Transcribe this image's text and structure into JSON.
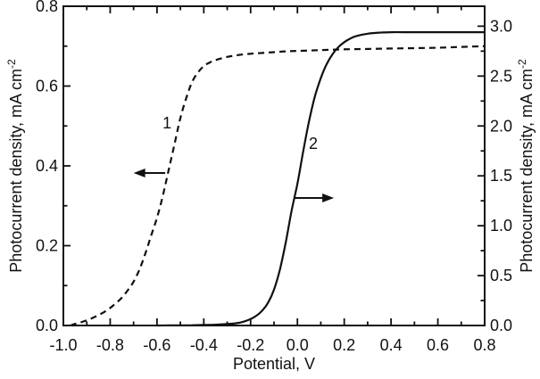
{
  "figure": {
    "background": "#ffffff",
    "ink_color": "#111111"
  },
  "chart_data": {
    "type": "line",
    "title": "",
    "xlabel": "Potential, V",
    "ylabel_left": {
      "text": "Photocurrent density, mA cm",
      "sup": "-2"
    },
    "ylabel_right": {
      "text": "Photocurrent density, mA cm",
      "sup": "-2"
    },
    "x_range": [
      -1.0,
      0.8
    ],
    "y_left_range": [
      0.0,
      0.8
    ],
    "y_right_range": [
      0.0,
      3.2
    ],
    "grid": false,
    "legend": "none",
    "x_major_ticks": [
      -1.0,
      -0.8,
      -0.6,
      -0.4,
      -0.2,
      0.0,
      0.2,
      0.4,
      0.6,
      0.8
    ],
    "x_tick_labels": [
      "-1.0",
      "-0.8",
      "-0.6",
      "-0.4",
      "-0.2",
      "0.0",
      "0.2",
      "0.4",
      "0.6",
      "0.8"
    ],
    "x_minor_ticks": [
      -0.9,
      -0.7,
      -0.5,
      -0.3,
      -0.1,
      0.1,
      0.3,
      0.5,
      0.7
    ],
    "y_left_major_ticks": [
      0.0,
      0.2,
      0.4,
      0.6,
      0.8
    ],
    "y_left_tick_labels": [
      "0.0",
      "0.2",
      "0.4",
      "0.6",
      "0.8"
    ],
    "y_left_minor_ticks": [
      0.1,
      0.3,
      0.5,
      0.7
    ],
    "y_right_major_ticks": [
      0.0,
      0.5,
      1.0,
      1.5,
      2.0,
      2.5,
      3.0
    ],
    "y_right_tick_labels": [
      "0.0",
      "0.5",
      "1.0",
      "1.5",
      "2.0",
      "2.5",
      "3.0"
    ],
    "y_right_minor_ticks": [
      0.25,
      0.75,
      1.25,
      1.75,
      2.25,
      2.75
    ],
    "series": [
      {
        "name": "1",
        "axis": "left",
        "line_style": "dashed",
        "x": [
          -0.97,
          -0.95,
          -0.925,
          -0.9,
          -0.875,
          -0.85,
          -0.825,
          -0.8,
          -0.775,
          -0.75,
          -0.725,
          -0.7,
          -0.675,
          -0.65,
          -0.625,
          -0.6,
          -0.575,
          -0.55,
          -0.525,
          -0.5,
          -0.475,
          -0.45,
          -0.425,
          -0.4,
          -0.375,
          -0.35,
          -0.3,
          -0.25,
          -0.2,
          -0.15,
          -0.1,
          -0.05,
          0.0,
          0.1,
          0.2,
          0.3,
          0.4,
          0.5,
          0.6,
          0.7,
          0.8
        ],
        "y": [
          0.0,
          0.004,
          0.008,
          0.013,
          0.019,
          0.026,
          0.034,
          0.044,
          0.056,
          0.07,
          0.088,
          0.11,
          0.14,
          0.18,
          0.225,
          0.27,
          0.325,
          0.39,
          0.455,
          0.52,
          0.57,
          0.61,
          0.634,
          0.65,
          0.659,
          0.665,
          0.673,
          0.678,
          0.681,
          0.683,
          0.685,
          0.687,
          0.688,
          0.69,
          0.692,
          0.693,
          0.694,
          0.695,
          0.696,
          0.698,
          0.7
        ]
      },
      {
        "name": "2",
        "axis": "right",
        "line_style": "solid",
        "x": [
          -0.6,
          -0.55,
          -0.5,
          -0.45,
          -0.4,
          -0.35,
          -0.3,
          -0.275,
          -0.25,
          -0.225,
          -0.2,
          -0.175,
          -0.15,
          -0.125,
          -0.1,
          -0.075,
          -0.05,
          -0.025,
          0.0,
          0.025,
          0.05,
          0.075,
          0.1,
          0.125,
          0.15,
          0.175,
          0.2,
          0.225,
          0.25,
          0.3,
          0.35,
          0.4,
          0.45,
          0.5,
          0.55,
          0.6,
          0.65,
          0.7,
          0.75,
          0.8
        ],
        "y": [
          0.0,
          0.001,
          0.002,
          0.003,
          0.005,
          0.008,
          0.014,
          0.019,
          0.027,
          0.042,
          0.065,
          0.098,
          0.15,
          0.23,
          0.36,
          0.56,
          0.83,
          1.15,
          1.42,
          1.75,
          2.05,
          2.3,
          2.48,
          2.62,
          2.72,
          2.79,
          2.84,
          2.875,
          2.9,
          2.925,
          2.935,
          2.94,
          2.94,
          2.94,
          2.94,
          2.94,
          2.94,
          2.94,
          2.94,
          2.94
        ]
      }
    ],
    "annotations": [
      {
        "kind": "curve-label",
        "text": "1",
        "axis": "left",
        "x": -0.557,
        "y": 0.507
      },
      {
        "kind": "curve-label",
        "text": "2",
        "axis": "right",
        "x": 0.068,
        "y": 1.823
      },
      {
        "kind": "arrow",
        "direction": "left",
        "axis": "left",
        "x_from": -0.565,
        "x_to": -0.7,
        "y": 0.382
      },
      {
        "kind": "arrow",
        "direction": "right",
        "axis": "right",
        "x_from": -0.012,
        "x_to": 0.156,
        "y": 1.278
      }
    ]
  }
}
